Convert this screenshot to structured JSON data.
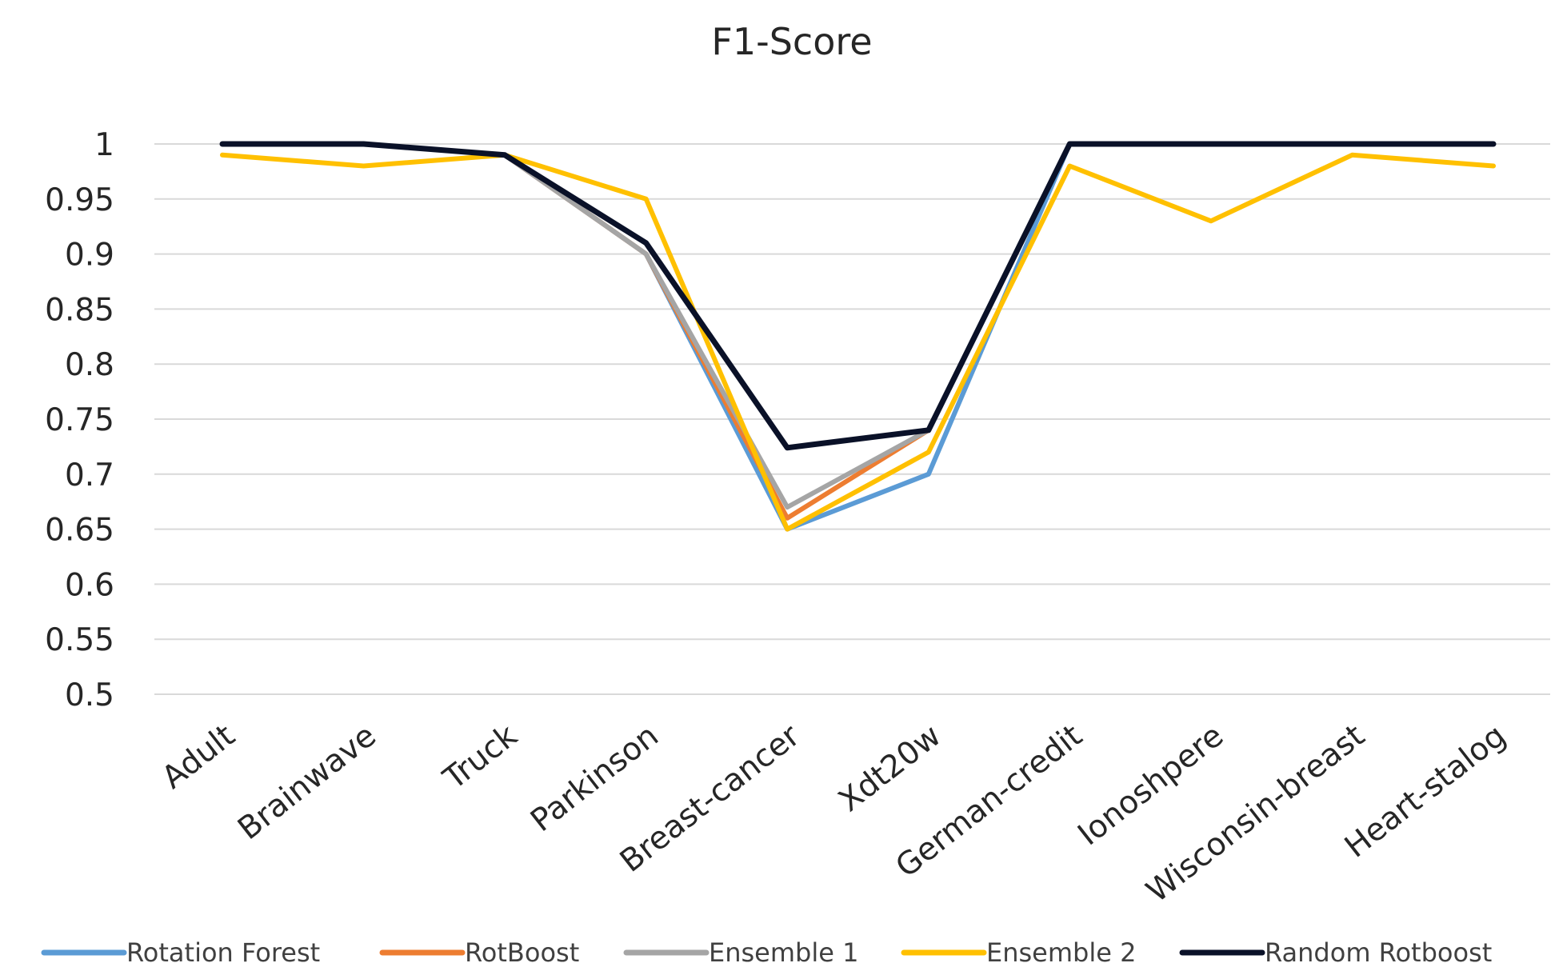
{
  "chart_data": {
    "type": "line",
    "title": "F1-Score",
    "xlabel": "",
    "ylabel": "",
    "categories": [
      "Adult",
      "Brainwave",
      "Truck",
      "Parkinson",
      "Breast-cancer",
      "Xdt20w",
      "German-credit",
      "Ionoshpere",
      "Wisconsin-breast",
      "Heart-stalog"
    ],
    "ylim": [
      0.5,
      1
    ],
    "yticks": [
      "1",
      "0.95",
      "0.9",
      "0.85",
      "0.8",
      "0.75",
      "0.7",
      "0.65",
      "0.6",
      "0.55",
      "0.5"
    ],
    "grid": true,
    "legend_position": "bottom",
    "series": [
      {
        "name": "Rotation Forest",
        "color": "#5b9bd5",
        "values": [
          1,
          1,
          0.99,
          0.9,
          0.65,
          0.7,
          1,
          1,
          1,
          1
        ]
      },
      {
        "name": "RotBoost",
        "color": "#ed7d31",
        "values": [
          1,
          1,
          0.99,
          0.9,
          0.66,
          0.74,
          1,
          1,
          1,
          1
        ]
      },
      {
        "name": "Ensemble 1",
        "color": "#a5a5a5",
        "values": [
          1,
          1,
          0.99,
          0.9,
          0.67,
          0.74,
          1,
          1,
          1,
          1
        ]
      },
      {
        "name": "Ensemble 2",
        "color": "#ffc000",
        "values": [
          0.99,
          0.98,
          0.99,
          0.95,
          0.65,
          0.72,
          0.98,
          0.93,
          0.99,
          0.98
        ]
      },
      {
        "name": "Random Rotboost",
        "color": "#0a1128",
        "values": [
          1,
          1,
          0.99,
          0.91,
          0.724,
          0.74,
          1,
          1,
          1,
          1
        ]
      }
    ]
  }
}
